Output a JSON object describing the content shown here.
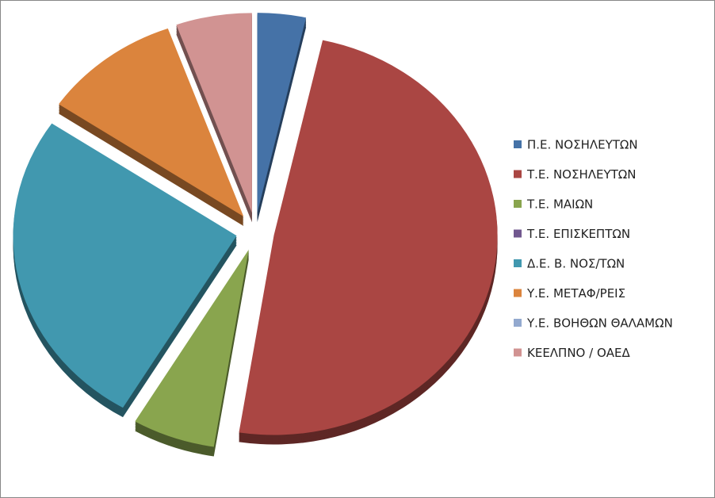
{
  "chart_data": {
    "type": "pie",
    "categories": [
      "Π.Ε.  ΝΟΣΗΛΕΥΤΩΝ",
      "Τ.Ε.  ΝΟΣΗΛΕΥΤΩΝ",
      "Τ.Ε. ΜΑΙΩΝ",
      "Τ.Ε. ΕΠΙΣΚΕΠΤΩΝ",
      "Δ.Ε.  Β. ΝΟΣ/ΤΩΝ",
      "Υ.Ε.  ΜΕΤΑΦ/ΡΕΙΣ",
      "Υ.Ε. ΒΟΗΘΩΝ ΘΑΛΑΜΩΝ",
      "ΚΕΕΛΠΝΟ / ΟΑΕΔ"
    ],
    "values": [
      3.5,
      49,
      6,
      0,
      26,
      10,
      0,
      5.5
    ],
    "colors": [
      "#4572a7",
      "#aa4643",
      "#89a54e",
      "#71588f",
      "#4198af",
      "#db843d",
      "#93a9cf",
      "#d19392"
    ],
    "legend": "right"
  }
}
